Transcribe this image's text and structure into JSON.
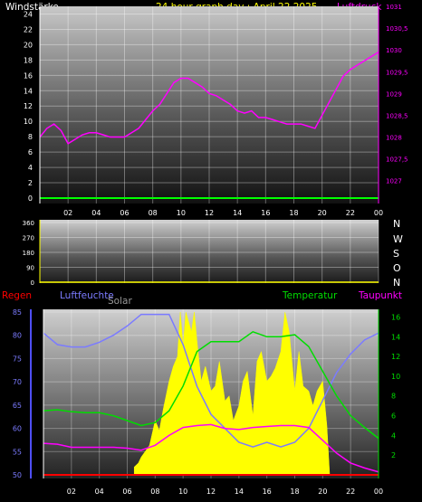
{
  "header": {
    "left_label": "Windstärke",
    "title": "24 hour graph day : April 22 2025",
    "right_label": "Luftdruck"
  },
  "compass": [
    "N",
    "W",
    "S",
    "O",
    "N"
  ],
  "bottom_header": {
    "regen": "Regen",
    "luftfeuchte": "Luftfeuchte",
    "solar": "Solar",
    "temperatur": "Temperatur",
    "taupunkt": "Taupunkt"
  },
  "colors": {
    "wind_axis": "#ffffff",
    "pressure": "#ff00ff",
    "title": "#ffff00",
    "humidity": "#7b7bff",
    "solar": "#ffff00",
    "temperature": "#00dd00",
    "dewpoint": "#ff00ff",
    "rain": "#ff0000",
    "wind_line": "#00ff00",
    "solar_label": "#999999"
  },
  "chart_data": [
    {
      "type": "line",
      "name": "wind-pressure",
      "x_ticks": [
        "02",
        "04",
        "06",
        "08",
        "10",
        "12",
        "14",
        "16",
        "18",
        "20",
        "22",
        "00"
      ],
      "y_left_ticks": [
        0,
        2,
        4,
        6,
        8,
        10,
        12,
        14,
        16,
        18,
        20,
        22,
        24
      ],
      "y_left_range": [
        0,
        25
      ],
      "y_right_ticks": [
        "1027",
        "1027,5",
        "1028",
        "1028,5",
        "1029",
        "1029,5",
        "1030",
        "1030,5",
        "1031"
      ],
      "y_right_range": [
        1026.6,
        1031
      ],
      "series": [
        {
          "axis": "right",
          "hours": [
            0,
            0.5,
            1,
            1.5,
            2,
            2.5,
            3,
            3.5,
            4,
            4.5,
            5,
            5.5,
            6,
            6.5,
            7,
            7.5,
            8,
            8.5,
            9,
            9.5,
            10,
            10.5,
            11,
            11.5,
            12,
            12.5,
            13,
            13.5,
            14,
            14.5,
            15,
            15.5,
            16,
            16.5,
            17,
            17.5,
            18,
            18.5,
            19,
            19.5,
            20,
            20.5,
            21,
            21.5,
            22,
            22.5,
            23,
            23.5,
            24
          ],
          "values": [
            1028,
            1028.2,
            1028.3,
            1028.15,
            1027.85,
            1027.95,
            1028.05,
            1028.1,
            1028.1,
            1028.05,
            1028,
            1028,
            1028,
            1028.1,
            1028.2,
            1028.4,
            1028.6,
            1028.75,
            1029,
            1029.25,
            1029.35,
            1029.35,
            1029.25,
            1029.15,
            1029,
            1028.95,
            1028.85,
            1028.75,
            1028.6,
            1028.55,
            1028.6,
            1028.45,
            1028.45,
            1028.4,
            1028.35,
            1028.3,
            1028.3,
            1028.3,
            1028.25,
            1028.2,
            1028.5,
            1028.8,
            1029.1,
            1029.4,
            1029.55,
            1029.65,
            1029.75,
            1029.85,
            1029.95
          ]
        },
        {
          "axis": "left",
          "hours": [
            0,
            24
          ],
          "values": [
            0.2,
            0.2
          ]
        }
      ]
    },
    {
      "type": "line",
      "name": "wind-direction",
      "y_ticks": [
        0,
        90,
        180,
        270,
        360
      ],
      "y_range": [
        0,
        360
      ],
      "series": [
        {
          "hours": [
            0,
            24
          ],
          "values": [
            0,
            0
          ]
        }
      ]
    },
    {
      "type": "area",
      "name": "humidity-solar-temperature-dewpoint",
      "y_left_ticks": [
        50,
        55,
        60,
        65,
        70,
        75,
        80,
        85
      ],
      "y_left_range": [
        50,
        85
      ],
      "y_right_ticks": [
        2,
        4,
        6,
        8,
        10,
        12,
        14,
        16
      ],
      "y_right_range": [
        0,
        16.5
      ],
      "series": [
        {
          "name": "Luftfeuchte",
          "axis": "left",
          "hours": [
            0,
            1,
            2,
            3,
            4,
            5,
            6,
            7,
            7.5,
            8,
            9,
            10,
            11,
            12,
            13,
            14,
            15,
            16,
            17,
            18,
            19,
            20,
            21,
            22,
            23,
            24
          ],
          "values": [
            80.5,
            78,
            77.5,
            77.5,
            78.5,
            80,
            82,
            84.5,
            84.5,
            84.5,
            84.5,
            78,
            69,
            63,
            60,
            57,
            56,
            57,
            56,
            57,
            60,
            66,
            72,
            76,
            79,
            80.5
          ]
        },
        {
          "name": "Temperatur",
          "axis": "right",
          "hours": [
            0,
            1,
            2,
            3,
            4,
            5,
            6,
            7,
            8,
            9,
            10,
            11,
            12,
            13,
            14,
            15,
            16,
            17,
            18,
            19,
            20,
            21,
            22,
            23,
            24
          ],
          "values": [
            6.5,
            6.6,
            6.4,
            6.3,
            6.3,
            6,
            5.5,
            5,
            5.3,
            6.5,
            9,
            12.5,
            13.5,
            13.5,
            13.5,
            14.5,
            14,
            14,
            14.2,
            13,
            10.5,
            8,
            6,
            4.8,
            3.7
          ]
        },
        {
          "name": "Taupunkt",
          "axis": "right",
          "hours": [
            0,
            1,
            2,
            3,
            4,
            5,
            6,
            7,
            8,
            9,
            10,
            11,
            12,
            13,
            14,
            15,
            16,
            17,
            18,
            19,
            20,
            21,
            22,
            23,
            24
          ],
          "values": [
            3.2,
            3.1,
            2.8,
            2.8,
            2.8,
            2.8,
            2.7,
            2.5,
            3,
            4,
            4.8,
            5,
            5.1,
            4.7,
            4.6,
            4.8,
            4.9,
            5,
            5,
            4.8,
            3.5,
            2.2,
            1.2,
            0.7,
            0.3
          ]
        },
        {
          "name": "Solar",
          "axis": "right",
          "hours": [
            6.5,
            6.8,
            7,
            7.3,
            7.6,
            8,
            8.3,
            8.6,
            9,
            9.3,
            9.6,
            9.8,
            10,
            10.2,
            10.4,
            10.6,
            10.8,
            11,
            11.3,
            11.6,
            12,
            12.3,
            12.6,
            13,
            13.3,
            13.6,
            14,
            14.3,
            14.6,
            15,
            15.3,
            15.6,
            16,
            16.3,
            16.6,
            17,
            17.3,
            17.6,
            18,
            18.3,
            18.6,
            19,
            19.3,
            19.6,
            20,
            20.3,
            20.5
          ],
          "values": [
            0.8,
            1.2,
            1.8,
            2.4,
            3,
            5.5,
            4.5,
            6.8,
            9.5,
            11,
            12,
            16.5,
            13,
            16.5,
            15.5,
            14.5,
            16.5,
            13.5,
            9.5,
            11,
            8.5,
            9,
            11.5,
            7.5,
            8,
            5.5,
            7,
            9.5,
            10.5,
            6,
            11.5,
            12.5,
            9.5,
            10,
            10.8,
            12.5,
            16.5,
            14.5,
            8.5,
            12.5,
            9,
            8.5,
            7,
            8.5,
            9.5,
            5,
            0
          ]
        },
        {
          "name": "Regen",
          "axis": "left",
          "hours": [
            0,
            24
          ],
          "values": [
            50.5,
            50.5
          ]
        }
      ]
    }
  ]
}
